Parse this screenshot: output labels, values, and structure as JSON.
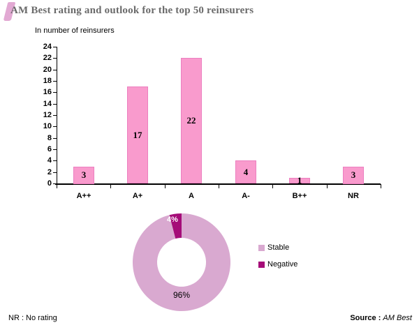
{
  "header": {
    "title": "AM Best rating and outlook for the top 50 reinsurers"
  },
  "chart_data": [
    {
      "type": "bar",
      "title": "In number of reinsurers",
      "categories": [
        "A++",
        "A+",
        "A",
        "A-",
        "B++",
        "NR"
      ],
      "values": [
        3,
        17,
        22,
        4,
        1,
        3
      ],
      "value_labels": [
        "3",
        "17",
        "22",
        "4",
        "1",
        "3"
      ],
      "ylim": [
        0,
        24
      ],
      "ytick_step": 2,
      "grid": false,
      "bar_color": "#f99bcd",
      "bar_border_color": "#ec7fc0",
      "axis_color": "#000000"
    },
    {
      "type": "pie",
      "donut": true,
      "slices": [
        {
          "label": "Stable",
          "value": 96,
          "color": "#d9a9d0",
          "text": "96%"
        },
        {
          "label": "Negative",
          "value": 4,
          "color": "#a50c78",
          "text": "4%"
        }
      ],
      "legend_position": "right"
    }
  ],
  "footer": {
    "note": "NR : No rating",
    "source_label": "Source :",
    "source_value": "AM Best"
  }
}
